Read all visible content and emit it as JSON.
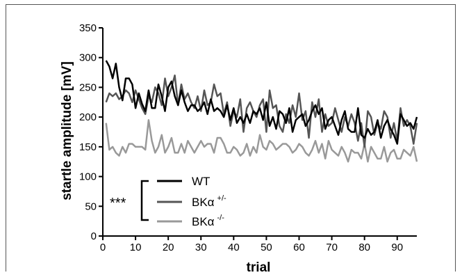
{
  "chart_data": {
    "type": "line",
    "xlabel": "trial",
    "ylabel": "startle amplitude [mV]",
    "xlim": [
      0,
      96
    ],
    "ylim": [
      0,
      350
    ],
    "xticks": [
      0,
      10,
      20,
      30,
      40,
      50,
      60,
      70,
      80,
      90
    ],
    "yticks": [
      0,
      50,
      100,
      150,
      200,
      250,
      300,
      350
    ],
    "grid": false,
    "legend_position": "bottom-left",
    "significance_label": "***",
    "series": [
      {
        "name": "WT",
        "label_main": "WT",
        "label_sup": "",
        "color": "#000000",
        "values": [
          295,
          285,
          265,
          290,
          250,
          228,
          265,
          265,
          255,
          215,
          240,
          222,
          210,
          245,
          215,
          215,
          255,
          235,
          210,
          250,
          260,
          235,
          220,
          245,
          225,
          210,
          220,
          220,
          210,
          215,
          225,
          205,
          230,
          210,
          215,
          210,
          200,
          220,
          195,
          215,
          190,
          200,
          190,
          205,
          190,
          210,
          205,
          215,
          195,
          225,
          185,
          200,
          180,
          210,
          205,
          190,
          215,
          175,
          195,
          200,
          205,
          185,
          195,
          210,
          220,
          205,
          215,
          180,
          195,
          200,
          185,
          170,
          195,
          210,
          180,
          175,
          175,
          215,
          170,
          165,
          180,
          170,
          175,
          195,
          165,
          185,
          195,
          180,
          170,
          155,
          205,
          195,
          185,
          190,
          180,
          200
        ]
      },
      {
        "name": "BKα+/-",
        "label_main": "BKα",
        "label_sup": "+/-",
        "color": "#555555",
        "values": [
          225,
          240,
          235,
          240,
          230,
          235,
          245,
          240,
          225,
          245,
          230,
          215,
          205,
          235,
          225,
          250,
          240,
          220,
          265,
          235,
          250,
          270,
          220,
          255,
          230,
          240,
          225,
          215,
          235,
          210,
          245,
          220,
          225,
          255,
          235,
          240,
          205,
          225,
          185,
          210,
          200,
          230,
          175,
          215,
          225,
          210,
          200,
          220,
          230,
          175,
          245,
          215,
          220,
          185,
          175,
          205,
          190,
          220,
          200,
          240,
          195,
          210,
          165,
          225,
          200,
          230,
          175,
          205,
          185,
          190,
          215,
          195,
          175,
          200,
          185,
          205,
          190,
          160,
          190,
          150,
          210,
          200,
          170,
          190,
          180,
          210,
          200,
          165,
          190,
          160,
          215,
          185,
          195,
          185,
          155,
          190
        ]
      },
      {
        "name": "BKα-/-",
        "label_main": "BKα",
        "label_sup": "-/-",
        "color": "#999999",
        "values": [
          190,
          145,
          150,
          140,
          135,
          150,
          140,
          155,
          155,
          150,
          150,
          150,
          145,
          195,
          160,
          140,
          150,
          170,
          140,
          150,
          165,
          140,
          140,
          155,
          140,
          160,
          150,
          140,
          150,
          160,
          150,
          155,
          155,
          140,
          165,
          165,
          155,
          140,
          140,
          150,
          145,
          135,
          140,
          155,
          135,
          150,
          140,
          170,
          150,
          145,
          160,
          155,
          145,
          150,
          155,
          155,
          150,
          140,
          145,
          155,
          150,
          140,
          135,
          145,
          160,
          140,
          155,
          130,
          160,
          145,
          140,
          135,
          150,
          140,
          125,
          145,
          140,
          140,
          130,
          155,
          125,
          150,
          140,
          130,
          130,
          150,
          125,
          140,
          145,
          130,
          130,
          145,
          140,
          135,
          150,
          125
        ]
      }
    ]
  }
}
